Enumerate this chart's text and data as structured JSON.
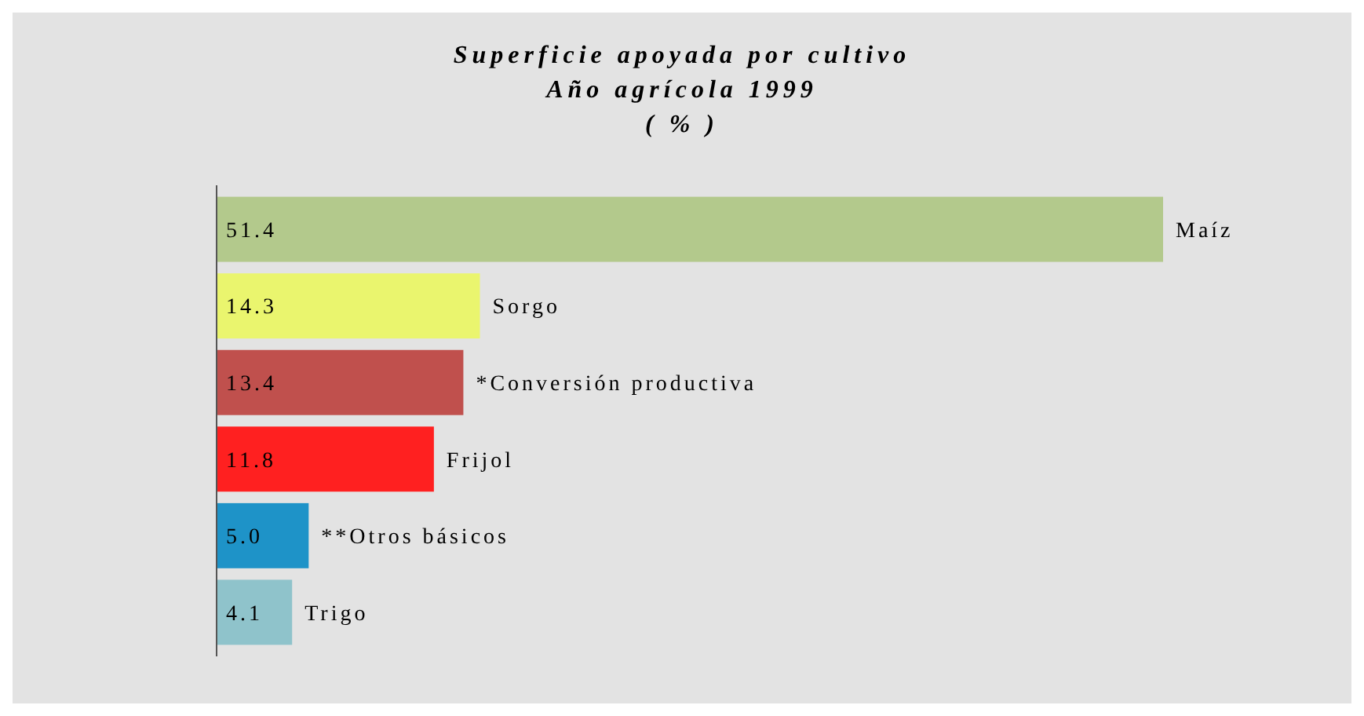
{
  "chart_data": {
    "type": "bar",
    "orientation": "horizontal",
    "title": "Superficie apoyada por cultivo\nAño agrícola 1999\n( % )",
    "categories": [
      "Maíz",
      "Sorgo",
      "*Conversión productiva",
      "Frijol",
      "**Otros básicos",
      "Trigo"
    ],
    "values": [
      51.4,
      14.3,
      13.4,
      11.8,
      5.0,
      4.1
    ],
    "colors": [
      "#b3c98c",
      "#eaf56e",
      "#c0504d",
      "#ff2020",
      "#1e93c8",
      "#8fc3cb"
    ],
    "value_labels": [
      "51.4",
      "14.3",
      "13.4",
      "11.8",
      "5.0",
      "4.1"
    ]
  }
}
